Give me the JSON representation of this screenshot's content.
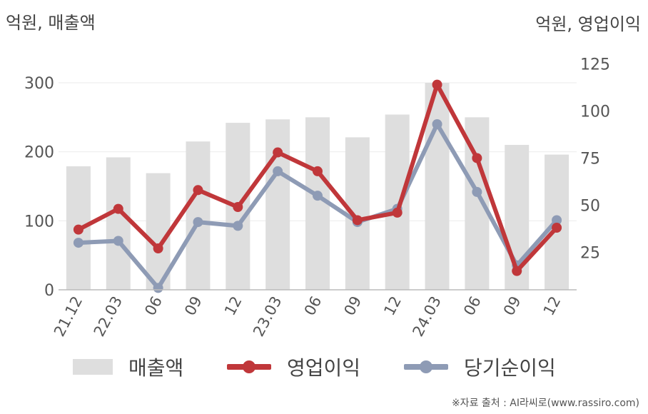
{
  "units": {
    "left": "억원, 매출액",
    "right": "억원, 영업이익"
  },
  "source": "※자료 출처 : AI라씨로(www.rassiro.com)",
  "colors": {
    "revenue": "#dedede",
    "operating_profit": "#c0373a",
    "net_income": "#8e9bb5",
    "grid": "#ebebeb",
    "axis": "#bbbbbb"
  },
  "chart_data": {
    "type": "bar",
    "categories": [
      "21.12",
      "22.03",
      "06",
      "09",
      "12",
      "23.03",
      "06",
      "09",
      "12",
      "24.03",
      "06",
      "09",
      "12"
    ],
    "y_left": {
      "ticks": [
        0,
        100,
        200,
        300
      ],
      "range": [
        0,
        300
      ]
    },
    "y_right": {
      "ticks": [
        25,
        50,
        75,
        100,
        125
      ],
      "range": [
        5,
        115
      ]
    },
    "grid": true,
    "legend": "bottom",
    "series": [
      {
        "name": "매출액",
        "type": "bar",
        "axis": "left",
        "values": [
          179,
          192,
          169,
          215,
          242,
          247,
          250,
          221,
          254,
          300,
          250,
          210,
          196
        ]
      },
      {
        "name": "영업이익",
        "type": "line",
        "axis": "right",
        "values": [
          37,
          48,
          27,
          58,
          49,
          78,
          68,
          42,
          46,
          114,
          75,
          15,
          38
        ]
      },
      {
        "name": "당기순이익",
        "type": "line",
        "axis": "right",
        "values": [
          30,
          31,
          6,
          41,
          39,
          68,
          55,
          41,
          48,
          93,
          57,
          18,
          42
        ]
      }
    ]
  }
}
